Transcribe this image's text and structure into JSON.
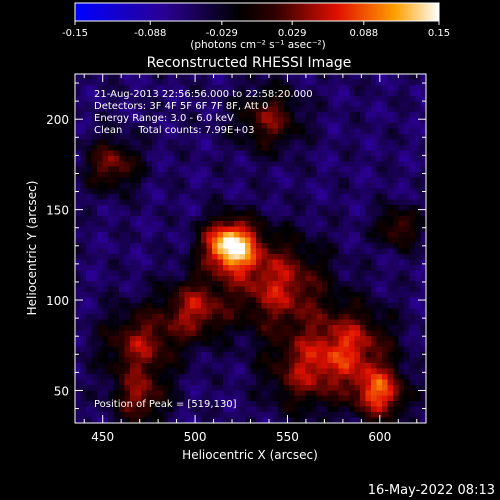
{
  "chart_data": {
    "type": "heatmap",
    "title": "Reconstructed RHESSI Image",
    "xlabel": "Heliocentric X (arcsec)",
    "ylabel": "Heliocentric Y (arcsec)",
    "xlim": [
      435,
      625
    ],
    "ylim": [
      32,
      225
    ],
    "xticks": [
      450,
      500,
      550,
      600
    ],
    "yticks": [
      50,
      100,
      150,
      200
    ],
    "colorbar": {
      "label": "(photons cm⁻² s⁻¹ asec⁻²)",
      "range": [
        -0.15,
        0.15
      ],
      "ticks": [
        "-0.15",
        "-0.088",
        "-0.029",
        "0.029",
        "0.088",
        "0.15"
      ],
      "colors": [
        "#0000ff",
        "#000000",
        "#ff0000",
        "#ffff00",
        "#ffffff"
      ]
    },
    "annotations": [
      "21-Aug-2013 22:56:56.000 to 22:58:20.000",
      "Detectors: 3F 4F 5F 6F 7F 8F, Att 0",
      "Energy Range: 3.0 - 6.0 keV",
      "Clean     Total counts: 7.99E+03"
    ],
    "peak_label": "Position of Peak = [519,130]",
    "peak": {
      "x": 519,
      "y": 130,
      "value": 0.15
    },
    "sources": [
      {
        "x": 519,
        "y": 130,
        "value": 0.15,
        "radius": 10
      },
      {
        "x": 545,
        "y": 108,
        "value": 0.06,
        "radius": 18
      },
      {
        "x": 500,
        "y": 95,
        "value": 0.05,
        "radius": 12
      },
      {
        "x": 470,
        "y": 75,
        "value": 0.045,
        "radius": 14
      },
      {
        "x": 585,
        "y": 75,
        "value": 0.055,
        "radius": 15
      },
      {
        "x": 600,
        "y": 48,
        "value": 0.08,
        "radius": 10
      },
      {
        "x": 560,
        "y": 60,
        "value": 0.04,
        "radius": 15
      },
      {
        "x": 455,
        "y": 175,
        "value": 0.04,
        "radius": 10
      },
      {
        "x": 540,
        "y": 200,
        "value": 0.035,
        "radius": 12
      },
      {
        "x": 470,
        "y": 45,
        "value": 0.035,
        "radius": 10
      },
      {
        "x": 610,
        "y": 140,
        "value": 0.03,
        "radius": 8
      }
    ]
  },
  "footer": {
    "timestamp": "16-May-2022 08:13"
  },
  "colors": {
    "background": "#000000",
    "text": "#ffffff"
  }
}
